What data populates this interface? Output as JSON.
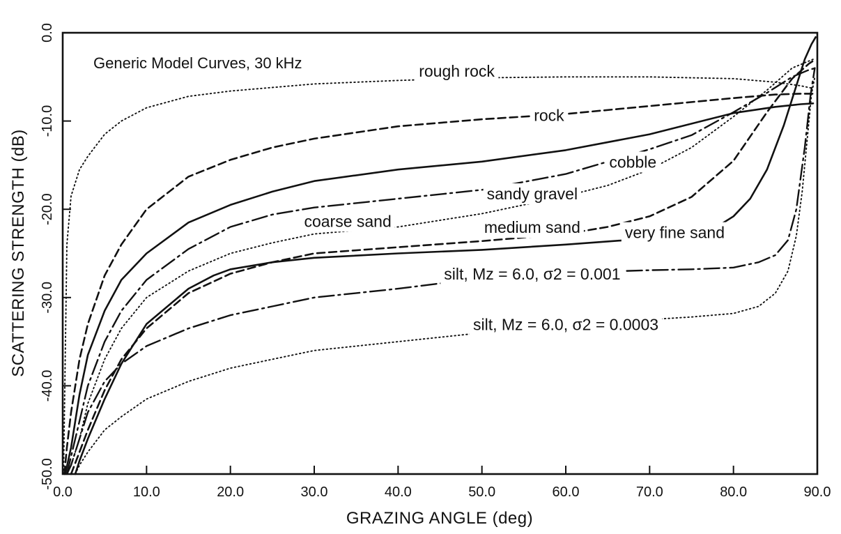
{
  "chart_data": {
    "type": "line",
    "title": "Generic Model Curves, 30 kHz",
    "xlabel": "GRAZING ANGLE  (deg)",
    "ylabel": "SCATTERING STRENGTH (dB)",
    "xlim": [
      0,
      90
    ],
    "ylim": [
      -50,
      0
    ],
    "x_ticks": [
      0,
      10,
      20,
      30,
      40,
      50,
      60,
      70,
      80,
      90
    ],
    "x_tick_labels": [
      "0.0",
      "10.0",
      "20.0",
      "30.0",
      "40.0",
      "50.0",
      "60.0",
      "70.0",
      "80.0",
      "90.0"
    ],
    "y_ticks": [
      0,
      -10,
      -20,
      -30,
      -40,
      -50
    ],
    "y_tick_labels": [
      "0.0",
      "-10.0",
      "-20.0",
      "-30.0",
      "-40.0",
      "-50.0"
    ],
    "grid": false,
    "legend": "none",
    "series": [
      {
        "name": "rough rock",
        "style": "dotted",
        "label_at": [
          47,
          -4.5
        ],
        "x": [
          0.1,
          0.5,
          1,
          2,
          3,
          5,
          7,
          10,
          15,
          20,
          25,
          30,
          40,
          50,
          60,
          70,
          80,
          85,
          88,
          89.5
        ],
        "y": [
          -50,
          -24,
          -18.5,
          -15.5,
          -14,
          -11.5,
          -10,
          -8.5,
          -7.2,
          -6.6,
          -6.2,
          -5.8,
          -5.4,
          -5.1,
          -5,
          -5,
          -5.2,
          -5.6,
          -6,
          -6.3
        ]
      },
      {
        "name": "rock",
        "style": "dashed",
        "label_at": [
          58,
          -9.5
        ],
        "x": [
          0.2,
          0.5,
          1,
          2,
          3,
          5,
          7,
          10,
          15,
          20,
          25,
          30,
          40,
          50,
          60,
          70,
          80,
          85,
          88,
          89.5
        ],
        "y": [
          -50,
          -47,
          -43,
          -37,
          -33,
          -27.5,
          -24,
          -20,
          -16.3,
          -14.4,
          -13,
          -12,
          -10.6,
          -9.8,
          -9.2,
          -8.3,
          -7.4,
          -7,
          -6.9,
          -6.9
        ]
      },
      {
        "name": "cobble",
        "style": "solid",
        "label_at": [
          68,
          -14.8
        ],
        "x": [
          0.3,
          1,
          2,
          3,
          5,
          7,
          10,
          15,
          20,
          25,
          30,
          40,
          50,
          60,
          70,
          80,
          85,
          88,
          89.5
        ],
        "y": [
          -50,
          -47,
          -41,
          -36.5,
          -31.5,
          -28,
          -25,
          -21.5,
          -19.5,
          -18,
          -16.8,
          -15.5,
          -14.6,
          -13.3,
          -11.5,
          -9.1,
          -8.4,
          -8.1,
          -8
        ]
      },
      {
        "name": "sandy gravel",
        "style": "dash-dot",
        "label_at": [
          56,
          -18.4
        ],
        "x": [
          0.5,
          1,
          2,
          3,
          5,
          7,
          10,
          15,
          20,
          25,
          30,
          40,
          50,
          60,
          70,
          75,
          80,
          84,
          87,
          89,
          89.8
        ],
        "y": [
          -50,
          -48,
          -44,
          -40,
          -35,
          -31.5,
          -28,
          -24.5,
          -22,
          -20.6,
          -19.8,
          -18.8,
          -17.8,
          -16,
          -13.2,
          -11.6,
          -9,
          -6.8,
          -5,
          -4.2,
          -4
        ]
      },
      {
        "name": "coarse sand",
        "style": "dotted",
        "label_at": [
          34,
          -21.5
        ],
        "x": [
          0.5,
          1,
          2,
          3,
          5,
          7,
          10,
          15,
          20,
          25,
          30,
          40,
          50,
          60,
          65,
          70,
          75,
          80,
          84,
          87,
          89.5
        ],
        "y": [
          -50,
          -49,
          -46,
          -42,
          -37,
          -33.5,
          -30,
          -27,
          -25,
          -23.8,
          -22.8,
          -22,
          -20.5,
          -18.5,
          -17.3,
          -15.5,
          -13,
          -9.5,
          -6.5,
          -4,
          -3
        ]
      },
      {
        "name": "medium sand",
        "style": "dashed",
        "label_at": [
          56,
          -22.2
        ],
        "x": [
          1,
          2,
          3,
          5,
          7,
          10,
          15,
          20,
          25,
          30,
          40,
          50,
          60,
          65,
          70,
          75,
          80,
          84,
          87,
          89,
          89.8
        ],
        "y": [
          -50,
          -47.5,
          -45,
          -40.5,
          -37,
          -33.5,
          -29.5,
          -27.3,
          -26,
          -25,
          -24.3,
          -23.6,
          -22.8,
          -22,
          -20.8,
          -18.6,
          -14.5,
          -9,
          -5.2,
          -3.5,
          -3
        ]
      },
      {
        "name": "very fine sand",
        "style": "solid",
        "label_at": [
          73,
          -22.8
        ],
        "x": [
          1.5,
          2,
          3,
          5,
          7,
          10,
          15,
          18,
          20,
          25,
          30,
          40,
          50,
          60,
          70,
          75,
          78,
          80,
          82,
          84,
          86,
          87.5,
          88.5,
          89.3,
          89.8
        ],
        "y": [
          -50,
          -48.5,
          -46,
          -41.5,
          -37.5,
          -33,
          -29,
          -27.5,
          -26.8,
          -26,
          -25.5,
          -25,
          -24.6,
          -24,
          -23.3,
          -22.8,
          -22,
          -20.8,
          -18.8,
          -15.5,
          -10.5,
          -6,
          -3,
          -1.3,
          -0.5
        ]
      },
      {
        "name": "silt, M_z = 6.0, σ_2 = 0.001",
        "label": "silt, Mz = 6.0, σ2 = 0.001",
        "style": "dash-dot",
        "label_at": [
          56,
          -27.5
        ],
        "x": [
          0.5,
          1,
          2,
          3,
          5,
          7,
          10,
          15,
          20,
          25,
          30,
          40,
          50,
          60,
          70,
          75,
          80,
          83,
          85,
          86.5,
          87.5,
          88.5,
          89.2,
          89.7
        ],
        "y": [
          -50,
          -49,
          -46,
          -43,
          -39.5,
          -37.5,
          -35.5,
          -33.5,
          -32,
          -31,
          -30,
          -29,
          -27.8,
          -27.2,
          -26.9,
          -26.8,
          -26.6,
          -26,
          -25.2,
          -23.5,
          -20,
          -13,
          -7,
          -4
        ]
      },
      {
        "name": "silt, M_z = 6.0, σ_2 = 0.0003",
        "label": "silt, Mz = 6.0, σ2 = 0.0003",
        "style": "dotted",
        "label_at": [
          60,
          -33.2
        ],
        "x": [
          1.5,
          2,
          3,
          5,
          7,
          10,
          15,
          20,
          25,
          30,
          40,
          50,
          60,
          70,
          75,
          80,
          83,
          85,
          86.5,
          87.5,
          88.2,
          88.8,
          89.3,
          89.7
        ],
        "y": [
          -50,
          -49,
          -47.5,
          -45,
          -43.5,
          -41.5,
          -39.5,
          -38,
          -37,
          -36,
          -35,
          -34,
          -33.2,
          -32.5,
          -32.2,
          -31.8,
          -31,
          -29.5,
          -27,
          -23,
          -18,
          -12,
          -7,
          -5
        ]
      }
    ]
  }
}
